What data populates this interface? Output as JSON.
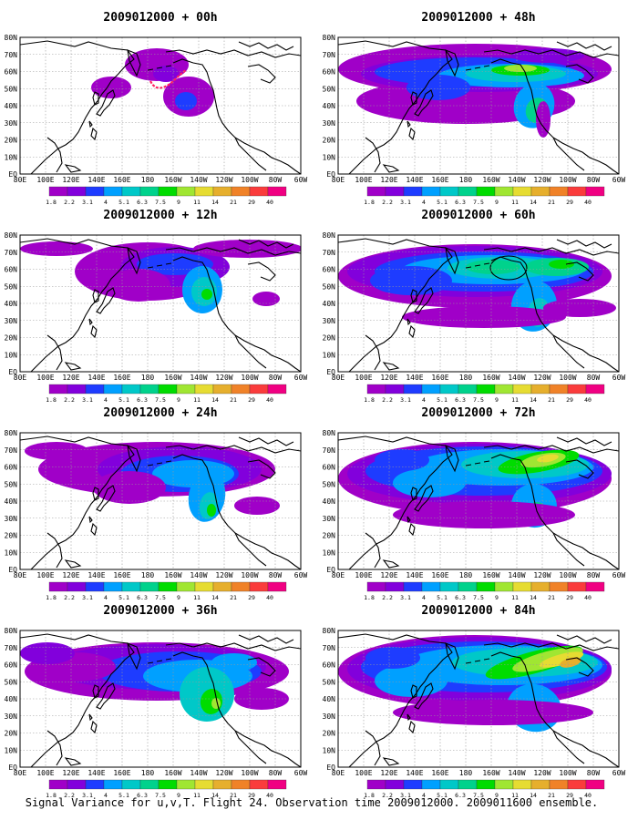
{
  "figure": {
    "caption": "Signal Variance for u,v,T. Flight 24. Observation time 2009012000. 2009011600 ensemble."
  },
  "panels": [
    {
      "id": "p00",
      "title": "2009012000 + 00h",
      "col": 0,
      "row": 0
    },
    {
      "id": "p48",
      "title": "2009012000 + 48h",
      "col": 1,
      "row": 0
    },
    {
      "id": "p12",
      "title": "2009012000 + 12h",
      "col": 0,
      "row": 1
    },
    {
      "id": "p60",
      "title": "2009012000 + 60h",
      "col": 1,
      "row": 1
    },
    {
      "id": "p24",
      "title": "2009012000 + 24h",
      "col": 0,
      "row": 2
    },
    {
      "id": "p72",
      "title": "2009012000 + 72h",
      "col": 1,
      "row": 2
    },
    {
      "id": "p36",
      "title": "2009012000 + 36h",
      "col": 0,
      "row": 3
    },
    {
      "id": "p84",
      "title": "2009012000 + 84h",
      "col": 1,
      "row": 3
    }
  ],
  "axes": {
    "lon_ticks": [
      "80E",
      "100E",
      "120E",
      "140E",
      "160E",
      "180",
      "160W",
      "140W",
      "120W",
      "100W",
      "80W",
      "60W"
    ],
    "lat_ticks": [
      "80N",
      "70N",
      "60N",
      "50N",
      "40N",
      "30N",
      "20N",
      "10N",
      "EQ"
    ]
  },
  "colorbar": {
    "labels": [
      "1.8",
      "2.2",
      "3.1",
      "4",
      "5.1",
      "6.3",
      "7.5",
      "9",
      "11",
      "14",
      "21",
      "29",
      "40"
    ],
    "colors": [
      "#a000c8",
      "#8200dc",
      "#1e3cff",
      "#00a0ff",
      "#00c8c8",
      "#00d28c",
      "#00dc00",
      "#a0e632",
      "#e6dc32",
      "#e6af2d",
      "#f08228",
      "#fa3c3c",
      "#f00082"
    ]
  }
}
